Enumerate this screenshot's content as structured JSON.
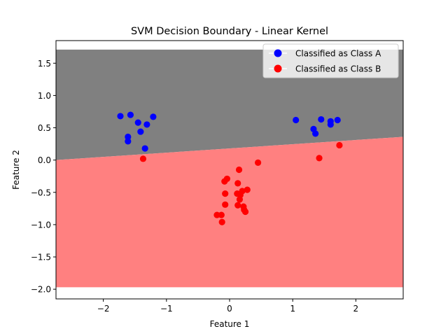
{
  "chart_data": {
    "type": "scatter",
    "title": "SVM Decision Boundary - Linear Kernel",
    "xlabel": "Feature 1",
    "ylabel": "Feature 2",
    "xlim": [
      -2.75,
      2.75
    ],
    "ylim": [
      -2.15,
      1.85
    ],
    "xticks": [
      -2,
      -1,
      0,
      1,
      2
    ],
    "xtick_labels": [
      "−2",
      "−1",
      "0",
      "1",
      "2"
    ],
    "yticks": [
      -2.0,
      -1.5,
      -1.0,
      -0.5,
      0.0,
      0.5,
      1.0,
      1.5
    ],
    "ytick_labels": [
      "−2.0",
      "−1.5",
      "−1.0",
      "−0.5",
      "0.0",
      "0.5",
      "1.0",
      "1.5"
    ],
    "grid": false,
    "legend_position": "top-right",
    "decision_regions": {
      "x_range": [
        -2.75,
        2.75
      ],
      "y_range": [
        -1.97,
        1.71
      ],
      "boundary": {
        "x": [
          -2.75,
          2.75
        ],
        "y": [
          0.0,
          0.36
        ]
      },
      "region_above": {
        "label": "Class A",
        "color": "#808080"
      },
      "region_below": {
        "label": "Class B",
        "color": "#ff8080"
      }
    },
    "series": [
      {
        "name": "Classified as Class A",
        "color": "#0000ff",
        "points": [
          [
            -1.73,
            0.68
          ],
          [
            -1.57,
            0.7
          ],
          [
            -1.45,
            0.58
          ],
          [
            -1.21,
            0.67
          ],
          [
            -1.31,
            0.55
          ],
          [
            -1.41,
            0.44
          ],
          [
            -1.61,
            0.36
          ],
          [
            -1.61,
            0.29
          ],
          [
            -1.34,
            0.18
          ],
          [
            1.05,
            0.62
          ],
          [
            1.45,
            0.63
          ],
          [
            1.6,
            0.6
          ],
          [
            1.71,
            0.62
          ],
          [
            1.6,
            0.55
          ],
          [
            1.33,
            0.48
          ],
          [
            1.36,
            0.41
          ]
        ]
      },
      {
        "name": "Classified as Class B",
        "color": "#ff0000",
        "points": [
          [
            -1.37,
            0.02
          ],
          [
            1.42,
            0.03
          ],
          [
            1.74,
            0.23
          ],
          [
            0.45,
            -0.04
          ],
          [
            0.15,
            -0.15
          ],
          [
            -0.04,
            -0.29
          ],
          [
            -0.08,
            -0.33
          ],
          [
            0.13,
            -0.36
          ],
          [
            0.28,
            -0.46
          ],
          [
            0.2,
            -0.48
          ],
          [
            -0.07,
            -0.52
          ],
          [
            0.12,
            -0.52
          ],
          [
            0.17,
            -0.54
          ],
          [
            0.16,
            -0.61
          ],
          [
            -0.07,
            -0.69
          ],
          [
            0.13,
            -0.7
          ],
          [
            0.22,
            -0.72
          ],
          [
            0.23,
            -0.77
          ],
          [
            0.25,
            -0.8
          ],
          [
            -0.2,
            -0.85
          ],
          [
            -0.13,
            -0.85
          ],
          [
            -0.12,
            -0.96
          ]
        ]
      }
    ]
  }
}
